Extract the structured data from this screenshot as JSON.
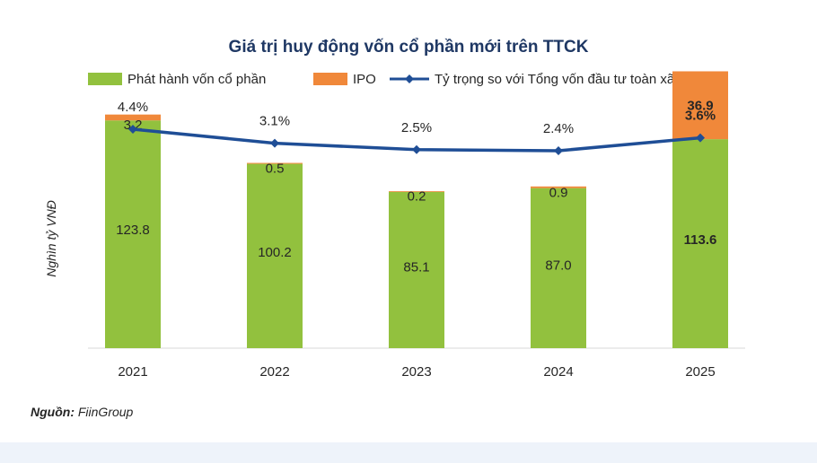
{
  "chart_data": {
    "type": "bar",
    "title": "Giá trị huy động vốn cổ phần mới trên TTCK",
    "ylabel": "Nghìn tỷ VNĐ",
    "xlabel": "",
    "ylim": [
      0,
      160
    ],
    "categories": [
      "2021",
      "2022",
      "2023",
      "2024",
      "2025"
    ],
    "series": [
      {
        "name": "Phát hành vốn cổ phần",
        "type": "bar",
        "stack": "main",
        "color": "#92c13e",
        "values": [
          123.8,
          100.2,
          85.1,
          87.0,
          113.6
        ],
        "labels": [
          "123.8",
          "100.2",
          "85.1",
          "87.0",
          "113.6"
        ]
      },
      {
        "name": "IPO",
        "type": "bar",
        "stack": "main",
        "color": "#f0883a",
        "values": [
          3.2,
          0.5,
          0.2,
          0.9,
          36.9
        ],
        "labels": [
          "3.2",
          "0.5",
          "0.2",
          "0.9",
          "36.9"
        ]
      },
      {
        "name": "Tỷ trọng so với Tổng vốn đầu tư toàn xã hội",
        "type": "line",
        "color": "#1f4e96",
        "values": [
          4.4,
          3.1,
          2.5,
          2.4,
          3.6
        ],
        "labels": [
          "4.4%",
          "3.1%",
          "2.5%",
          "2.4%",
          "3.6%"
        ]
      }
    ],
    "highlight_category": "2025",
    "legend_position": "top"
  },
  "source": {
    "label": "Nguồn:",
    "value": "FiinGroup"
  }
}
